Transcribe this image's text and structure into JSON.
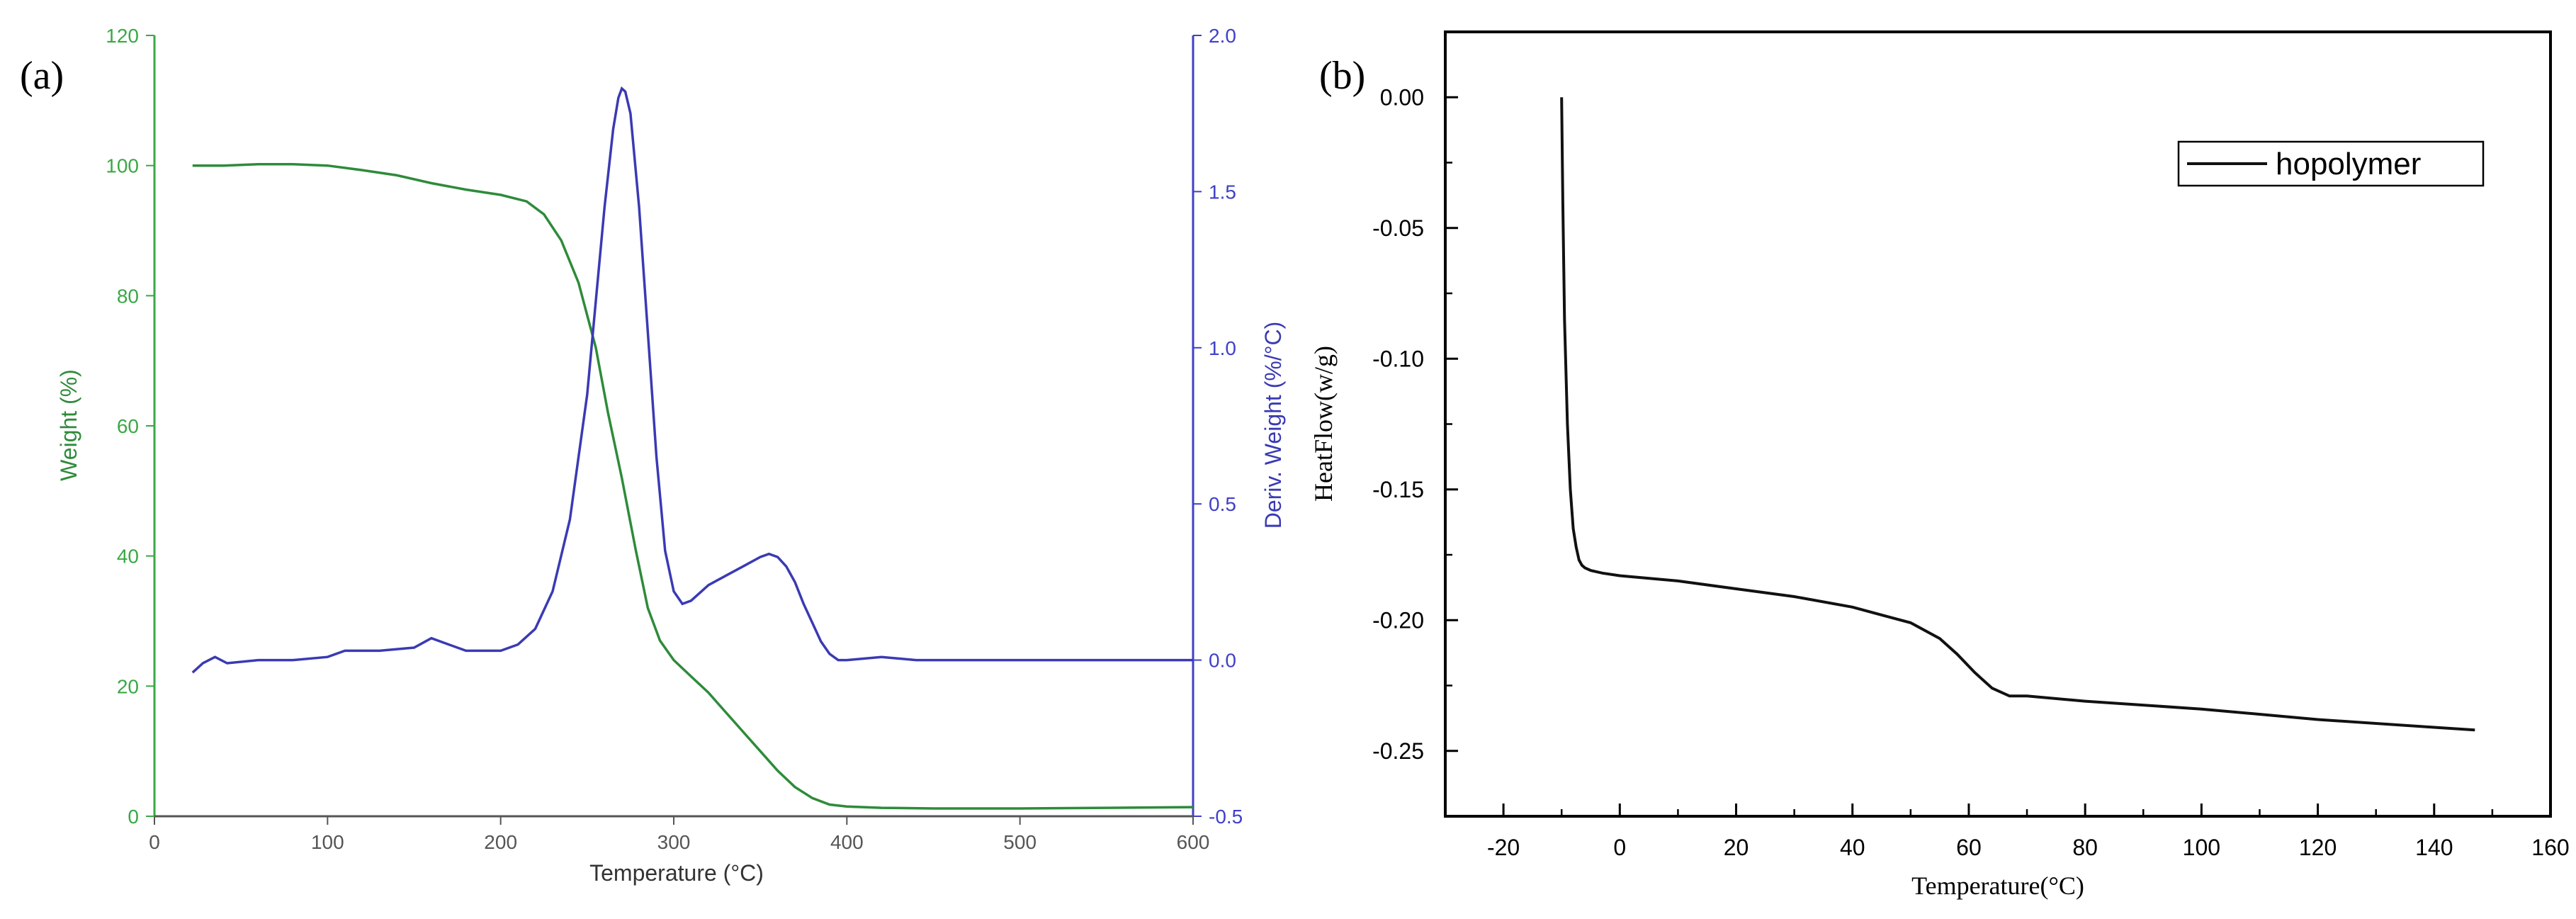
{
  "chart_data": [
    {
      "type": "line",
      "panel_label": "(a)",
      "xlabel": "Temperature (°C)",
      "ylabel_left": "Weight (%)",
      "ylabel_right": "Deriv. Weight (%/°C)",
      "xlim": [
        0,
        600
      ],
      "ylim_left": [
        0,
        120
      ],
      "ylim_right": [
        -0.5,
        2.0
      ],
      "x_ticks": [
        "0",
        "100",
        "200",
        "300",
        "400",
        "500",
        "600"
      ],
      "y_ticks_left": [
        "0",
        "20",
        "40",
        "60",
        "80",
        "100",
        "120"
      ],
      "y_ticks_right": [
        "-0.5",
        "0.0",
        "0.5",
        "1.0",
        "1.5",
        "2.0"
      ],
      "grid": false,
      "colors": {
        "weight": "#2e8b3a",
        "deriv": "#3a3ab4",
        "left_axis": "#3aa844",
        "right_axis": "#4040c8"
      },
      "series": [
        {
          "name": "Weight",
          "axis": "left",
          "x": [
            22,
            40,
            60,
            80,
            100,
            120,
            140,
            160,
            180,
            200,
            215,
            225,
            235,
            245,
            255,
            262,
            270,
            278,
            285,
            292,
            300,
            310,
            320,
            330,
            340,
            350,
            360,
            370,
            380,
            390,
            400,
            420,
            450,
            500,
            550,
            600
          ],
          "y": [
            100.0,
            100.0,
            100.2,
            100.2,
            100.0,
            99.3,
            98.5,
            97.3,
            96.3,
            95.5,
            94.5,
            92.5,
            88.5,
            82.0,
            72.0,
            62.0,
            52.0,
            41.0,
            32.0,
            27.0,
            24.0,
            21.5,
            19.0,
            16.0,
            13.0,
            10.0,
            7.0,
            4.5,
            2.8,
            1.8,
            1.5,
            1.3,
            1.2,
            1.2,
            1.3,
            1.4
          ]
        },
        {
          "name": "Deriv. Weight",
          "axis": "right",
          "x": [
            22,
            28,
            35,
            42,
            60,
            80,
            100,
            110,
            130,
            150,
            160,
            170,
            180,
            200,
            210,
            220,
            230,
            240,
            250,
            255,
            260,
            265,
            268,
            270,
            272,
            275,
            280,
            285,
            290,
            295,
            300,
            305,
            310,
            320,
            330,
            340,
            350,
            355,
            360,
            365,
            370,
            375,
            380,
            385,
            390,
            395,
            400,
            420,
            440,
            460,
            480,
            500,
            550,
            600
          ],
          "y": [
            -0.04,
            -0.01,
            0.01,
            -0.01,
            0.0,
            0.0,
            0.01,
            0.03,
            0.03,
            0.04,
            0.07,
            0.05,
            0.03,
            0.03,
            0.05,
            0.1,
            0.22,
            0.45,
            0.85,
            1.15,
            1.45,
            1.7,
            1.8,
            1.83,
            1.82,
            1.75,
            1.45,
            1.05,
            0.65,
            0.35,
            0.22,
            0.18,
            0.19,
            0.24,
            0.27,
            0.3,
            0.33,
            0.34,
            0.33,
            0.3,
            0.25,
            0.18,
            0.12,
            0.06,
            0.02,
            0.0,
            0.0,
            0.01,
            0.0,
            0.0,
            0.0,
            0.0,
            0.0,
            0.0
          ]
        }
      ]
    },
    {
      "type": "line",
      "panel_label": "(b)",
      "xlabel": "Temperature(°C)",
      "ylabel": "HeatFlow(w/g)",
      "xlim": [
        -30,
        160
      ],
      "ylim": [
        -0.275,
        0.025
      ],
      "x_ticks": [
        "-20",
        "0",
        "20",
        "40",
        "60",
        "80",
        "100",
        "120",
        "140",
        "160"
      ],
      "y_ticks": [
        "0.00",
        "-0.05",
        "-0.10",
        "-0.15",
        "-0.20",
        "-0.25"
      ],
      "grid": false,
      "legend_position": "top-right",
      "colors": {
        "line": "#111111"
      },
      "series": [
        {
          "name": "hopolymer",
          "x": [
            -10.0,
            -9.8,
            -9.5,
            -9.0,
            -8.5,
            -8.0,
            -7.5,
            -7.0,
            -6.5,
            -6.0,
            -5.0,
            -3.0,
            0,
            10,
            20,
            30,
            40,
            45,
            50,
            55,
            58,
            61,
            64,
            67,
            70,
            80,
            100,
            120,
            140,
            147
          ],
          "y": [
            0.0,
            -0.04,
            -0.085,
            -0.125,
            -0.15,
            -0.165,
            -0.172,
            -0.177,
            -0.179,
            -0.18,
            -0.181,
            -0.182,
            -0.183,
            -0.185,
            -0.188,
            -0.191,
            -0.195,
            -0.198,
            -0.201,
            -0.207,
            -0.213,
            -0.22,
            -0.226,
            -0.229,
            -0.229,
            -0.231,
            -0.234,
            -0.238,
            -0.241,
            -0.242
          ]
        }
      ]
    }
  ]
}
